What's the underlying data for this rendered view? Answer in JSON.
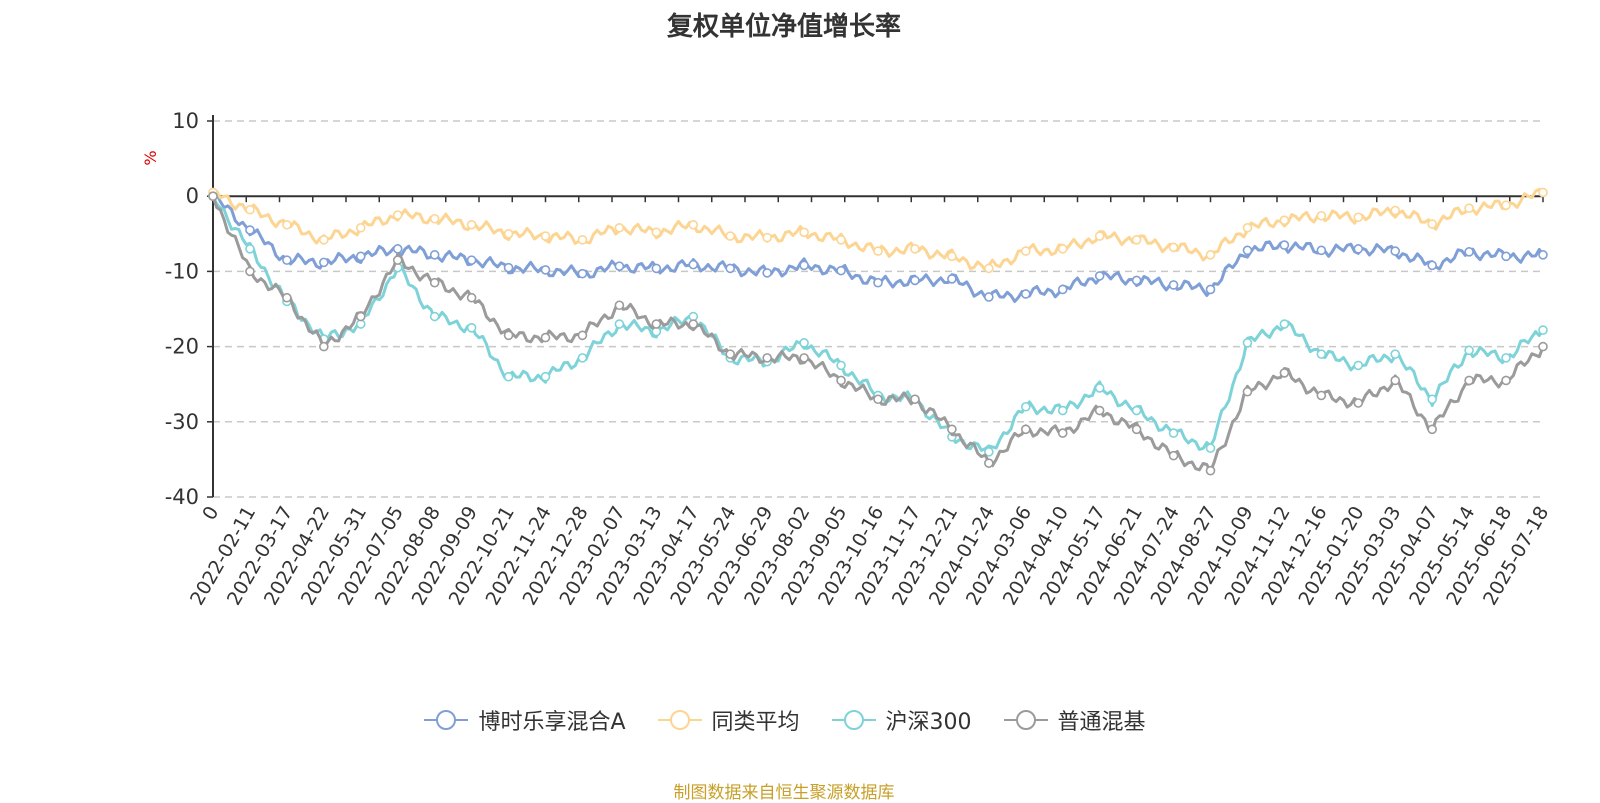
{
  "chart_data": {
    "type": "line",
    "title": "复权单位净值增长率",
    "ylabel": "%",
    "ylim": [
      -40,
      10
    ],
    "yticks": [
      10,
      0,
      -10,
      -20,
      -30,
      -40
    ],
    "grid": true,
    "legend_position": "bottom",
    "categories": [
      "0",
      "2022-02-11",
      "2022-03-17",
      "2022-04-22",
      "2022-05-31",
      "2022-07-05",
      "2022-08-08",
      "2022-09-09",
      "2022-10-21",
      "2022-11-24",
      "2022-12-28",
      "2023-02-07",
      "2023-03-13",
      "2023-04-17",
      "2023-05-24",
      "2023-06-29",
      "2023-08-02",
      "2023-09-05",
      "2023-10-16",
      "2023-11-17",
      "2023-12-21",
      "2024-01-24",
      "2024-03-06",
      "2024-04-10",
      "2024-05-17",
      "2024-06-21",
      "2024-07-24",
      "2024-08-27",
      "2024-10-09",
      "2024-11-12",
      "2024-12-16",
      "2025-01-20",
      "2025-03-03",
      "2025-04-07",
      "2025-05-14",
      "2025-06-18",
      "2025-07-18"
    ],
    "series": [
      {
        "name": "博时乐享混合A",
        "color": "#7f9fd6",
        "values": [
          0,
          -4.5,
          -8.5,
          -8.8,
          -8.0,
          -7.0,
          -7.8,
          -8.5,
          -9.5,
          -9.8,
          -10.3,
          -9.3,
          -9.6,
          -9.1,
          -9.6,
          -10.2,
          -9.2,
          -9.9,
          -11.5,
          -11.2,
          -11.0,
          -13.4,
          -13.0,
          -12.4,
          -10.6,
          -11.2,
          -11.8,
          -12.4,
          -7.2,
          -6.5,
          -7.2,
          -7.0,
          -7.3,
          -9.2,
          -7.4,
          -8.0,
          -7.8
        ]
      },
      {
        "name": "同类平均",
        "color": "#fcd593",
        "values": [
          0.5,
          -1.8,
          -3.8,
          -5.8,
          -4.2,
          -2.5,
          -3.0,
          -3.8,
          -5.0,
          -5.3,
          -5.8,
          -4.2,
          -4.8,
          -3.8,
          -5.3,
          -5.5,
          -4.8,
          -5.8,
          -7.3,
          -7.0,
          -8.0,
          -9.6,
          -7.3,
          -7.0,
          -5.3,
          -5.8,
          -6.8,
          -7.8,
          -4.2,
          -3.2,
          -2.6,
          -2.8,
          -1.9,
          -3.7,
          -1.6,
          -1.2,
          0.5
        ]
      },
      {
        "name": "沪深300",
        "color": "#7ed3d9",
        "values": [
          0,
          -7.0,
          -14.0,
          -19.0,
          -17.0,
          -9.5,
          -16.0,
          -17.5,
          -24.0,
          -24.0,
          -21.5,
          -17.0,
          -18.0,
          -16.0,
          -21.5,
          -22.0,
          -19.5,
          -22.5,
          -26.5,
          -27.0,
          -32.0,
          -34.0,
          -28.0,
          -28.5,
          -25.5,
          -28.5,
          -31.5,
          -33.5,
          -19.5,
          -17.0,
          -21.0,
          -22.5,
          -21.0,
          -27.0,
          -20.5,
          -21.5,
          -17.8
        ]
      },
      {
        "name": "普通混基",
        "color": "#9b9b9b",
        "values": [
          0,
          -10.0,
          -13.5,
          -20.0,
          -16.0,
          -8.5,
          -11.5,
          -13.5,
          -18.5,
          -18.8,
          -18.5,
          -14.5,
          -17.0,
          -17.0,
          -21.0,
          -21.5,
          -21.5,
          -24.5,
          -27.0,
          -27.0,
          -31.0,
          -35.5,
          -31.0,
          -31.5,
          -28.5,
          -31.0,
          -34.5,
          -36.5,
          -26.0,
          -23.5,
          -26.5,
          -27.5,
          -24.5,
          -31.0,
          -24.5,
          -24.5,
          -20.0
        ]
      }
    ]
  },
  "legend": [
    {
      "label": "博时乐享混合A",
      "color": "#7f9fd6",
      "icon": "circle-line-icon"
    },
    {
      "label": "同类平均",
      "color": "#fcd593",
      "icon": "circle-line-icon"
    },
    {
      "label": "沪深300",
      "color": "#7ed3d9",
      "icon": "circle-line-icon"
    },
    {
      "label": "普通混基",
      "color": "#9b9b9b",
      "icon": "circle-line-icon"
    }
  ],
  "source_note": {
    "text": "制图数据来自恒生聚源数据库",
    "color": "#c8a028"
  },
  "ylabel_color": "#e00000"
}
